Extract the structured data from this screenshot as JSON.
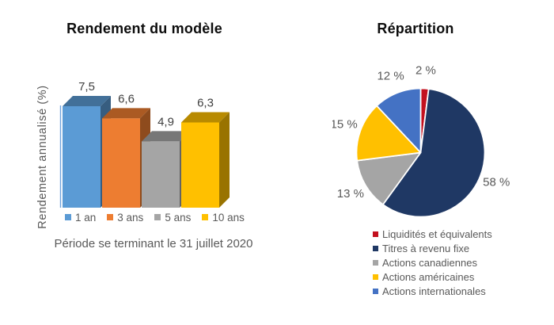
{
  "chart_data": [
    {
      "type": "bar",
      "style": "3d",
      "title": "Rendement du modèle",
      "ylabel": "Rendement annualisé (%)",
      "caption": "Période se terminant le 31 juillet 2020",
      "categories": [
        "1 an",
        "3 ans",
        "5 ans",
        "10 ans"
      ],
      "values": [
        7.5,
        6.6,
        4.9,
        6.3
      ],
      "value_labels": [
        "7,5",
        "6,6",
        "4,9",
        "6,3"
      ],
      "colors": [
        "#5B9BD5",
        "#ED7D31",
        "#A5A5A5",
        "#FFC000"
      ],
      "ylim": [
        0,
        7.5
      ],
      "grid": false,
      "legend_position": "bottom",
      "value_label_color": "#404040",
      "axis_line_color": "#6FA3DC"
    },
    {
      "type": "pie",
      "title": "Répartition",
      "direction": "clockwise",
      "start_angle_deg": 0,
      "legend_position": "bottom",
      "label_color": "#595959",
      "slices": [
        {
          "label": "Liquidités et équivalents",
          "value": 2,
          "display": "2 %",
          "color": "#C3101E"
        },
        {
          "label": "Titres à revenu fixe",
          "value": 58,
          "display": "58 %",
          "color": "#1F3864"
        },
        {
          "label": "Actions canadiennes",
          "value": 13,
          "display": "13 %",
          "color": "#A5A5A5"
        },
        {
          "label": "Actions américaines",
          "value": 15,
          "display": "15 %",
          "color": "#FFC000"
        },
        {
          "label": "Actions internationales",
          "value": 12,
          "display": "12 %",
          "color": "#4472C4"
        }
      ]
    }
  ]
}
